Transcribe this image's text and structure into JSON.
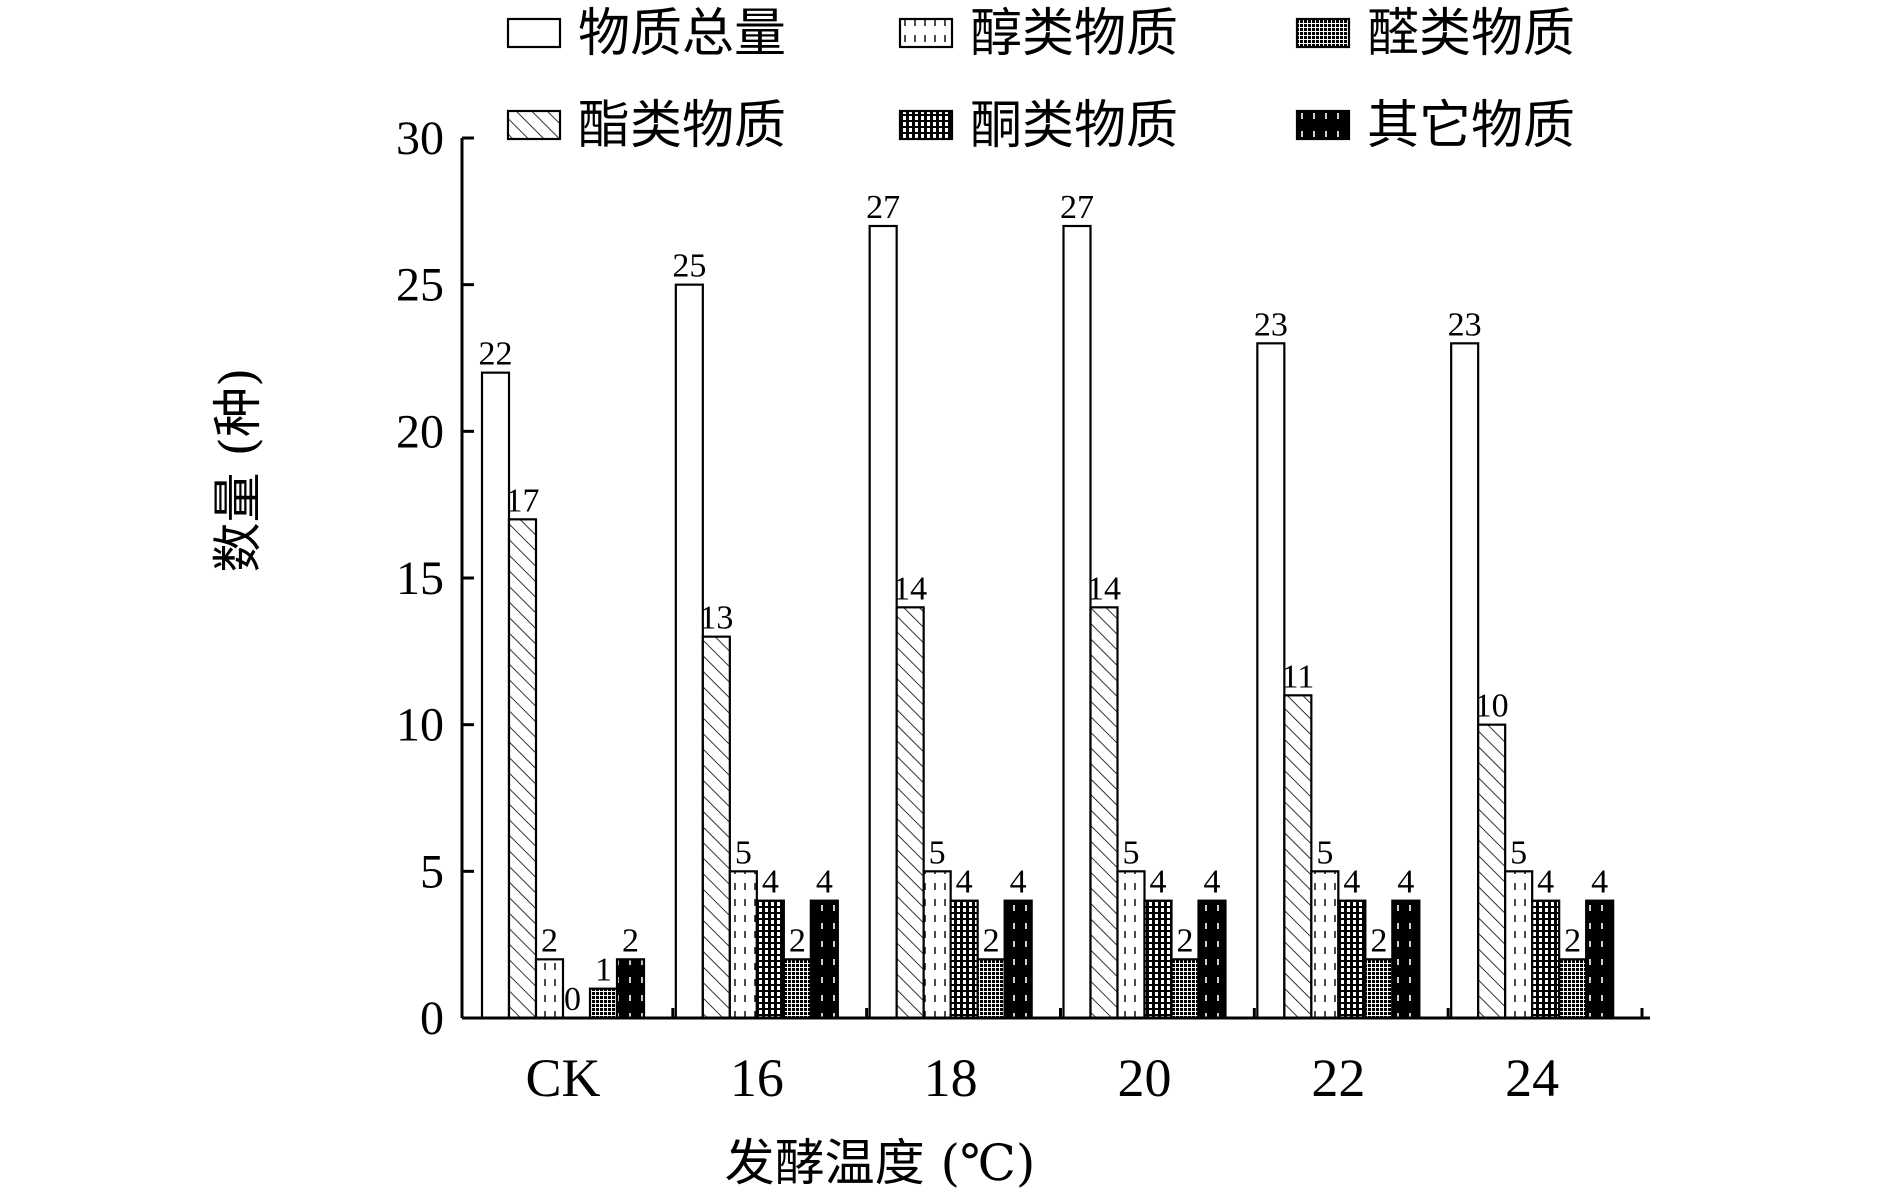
{
  "chart_data": {
    "type": "bar",
    "categories": [
      "CK",
      "16",
      "18",
      "20",
      "22",
      "24"
    ],
    "series": [
      {
        "name": "物质总量",
        "pattern": "empty",
        "values": [
          22,
          25,
          27,
          27,
          23,
          23
        ]
      },
      {
        "name": "酯类物质",
        "pattern": "diagonal",
        "values": [
          17,
          13,
          14,
          14,
          11,
          10
        ]
      },
      {
        "name": "醇类物质",
        "pattern": "dashes",
        "values": [
          2,
          5,
          5,
          5,
          5,
          5
        ]
      },
      {
        "name": "酮类物质",
        "pattern": "grid",
        "values": [
          0,
          4,
          4,
          4,
          4,
          4
        ]
      },
      {
        "name": "醛类物质",
        "pattern": "dense",
        "values": [
          1,
          2,
          2,
          2,
          2,
          2
        ]
      },
      {
        "name": "其它物质",
        "pattern": "black-dashes",
        "values": [
          2,
          4,
          4,
          4,
          4,
          4
        ]
      }
    ],
    "legend_order": [
      "物质总量",
      "醇类物质",
      "醛类物质",
      "酯类物质",
      "酮类物质",
      "其它物质"
    ],
    "xlabel": "发酵温度 (℃)",
    "ylabel": "数量 (种)",
    "ylim": [
      0,
      30
    ],
    "yticks": [
      0,
      5,
      10,
      15,
      20,
      25,
      30
    ],
    "grid": false,
    "legend_position": "top"
  }
}
